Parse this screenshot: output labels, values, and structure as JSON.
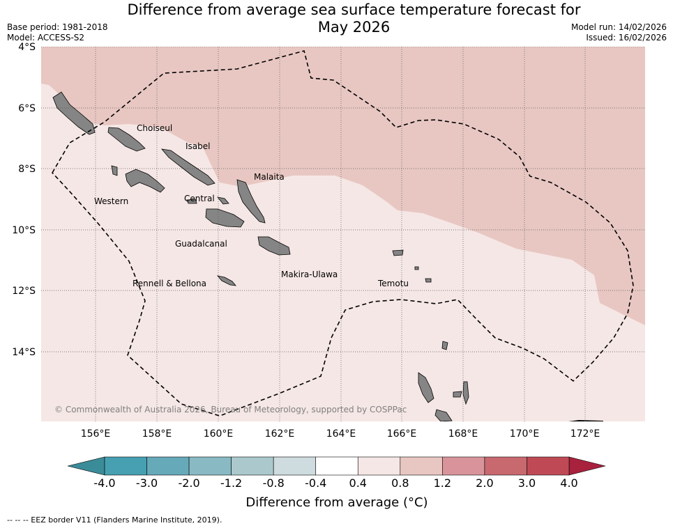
{
  "title": {
    "line1": "Difference from average sea surface temperature forecast for",
    "line2": "May 2026"
  },
  "meta_left": {
    "base_period": "Base period: 1981-2018",
    "model": "Model: ACCESS-S2"
  },
  "meta_right": {
    "model_run": "Model run: 14/02/2026",
    "issued": "Issued: 16/02/2026"
  },
  "map": {
    "lon_ticks": [
      "156°E",
      "158°E",
      "160°E",
      "162°E",
      "164°E",
      "166°E",
      "168°E",
      "170°E",
      "172°E"
    ],
    "lat_ticks": [
      "4°S",
      "6°S",
      "8°S",
      "10°S",
      "12°S",
      "14°S"
    ],
    "places": [
      "Choiseul",
      "Isabel",
      "Malaita",
      "Western",
      "Central",
      "Guadalcanal",
      "Makira-Ulawa",
      "Rennell & Bellona",
      "Temotu"
    ],
    "copyright": "© Commonwealth of Australia 2026, Bureau of Meteorology, supported by COSPPac",
    "colors": {
      "band_08_12": "#e8c7c2",
      "band_04_08": "#f5e7e5",
      "land": "#858585",
      "eez": "#000000"
    }
  },
  "colorbar": {
    "labels": [
      "-4.0",
      "-3.0",
      "-2.0",
      "-1.2",
      "-0.8",
      "-0.4",
      "0.4",
      "0.8",
      "1.2",
      "2.0",
      "3.0",
      "4.0"
    ],
    "colors": [
      "#46a0b2",
      "#66aab9",
      "#89bac4",
      "#abc9cd",
      "#cfdcdf",
      "#ffffff",
      "#f5e7e5",
      "#e8c7c2",
      "#d9949b",
      "#c8696f",
      "#bf4a55"
    ],
    "under_color": "#3b8c99",
    "over_color": "#a8213d",
    "title": "Difference from average (°C)"
  },
  "footer": "-- -- -- EEZ border V11 (Flanders Marine Institute, 2019)."
}
